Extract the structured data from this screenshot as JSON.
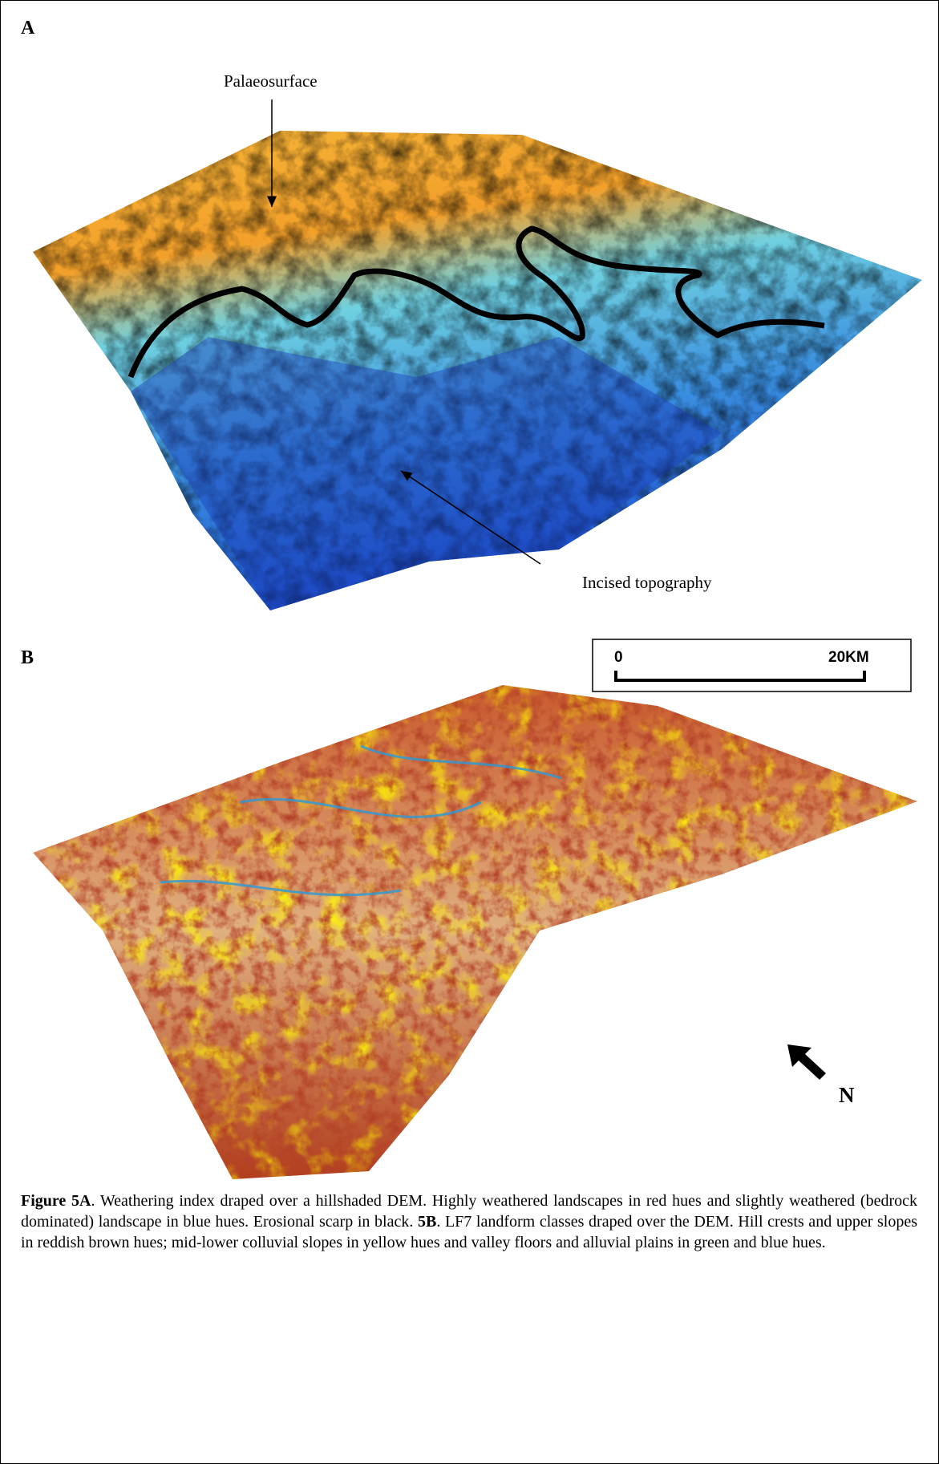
{
  "panel_a": {
    "label": "A",
    "annotations": [
      "Palaeosurface",
      "Incised topography"
    ]
  },
  "panel_b": {
    "label": "B",
    "scale_bar": {
      "start": "0",
      "end": "20KM"
    },
    "north": "N"
  },
  "caption": [
    {
      "text": "Figure 5A",
      "bold": true
    },
    {
      "text": ". Weathering index draped over a hillshaded DEM. Highly weathered landscapes in red hues and slightly weathered (bedrock dominated) landscape in blue hues. Erosional scarp in black. ",
      "bold": false
    },
    {
      "text": "5B",
      "bold": true
    },
    {
      "text": ". LF7 landform classes draped over the DEM. Hill crests and upper slopes in reddish brown hues; mid-lower colluvial slopes in yellow hues and valley floors and alluvial plains in green and blue hues.",
      "bold": false
    }
  ]
}
